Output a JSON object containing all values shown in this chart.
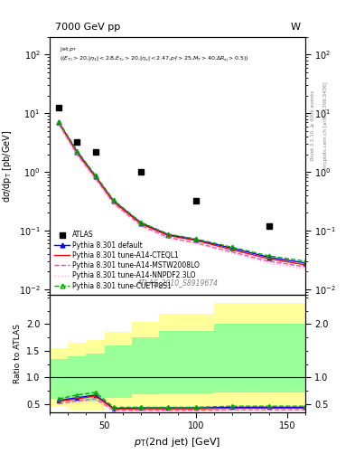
{
  "title_left": "7000 GeV pp",
  "title_right": "W",
  "watermark": "ATLAS_2010_S8919674",
  "xlabel": "p_{T}(2nd jet) [GeV]",
  "ylabel_main": "d#sigma/dp_{T} [pb/GeV]",
  "ylabel_ratio": "Ratio to ATLAS",
  "atlas_x": [
    25,
    35,
    45,
    70,
    100,
    140
  ],
  "atlas_y": [
    12.5,
    3.2,
    2.2,
    1.0,
    0.32,
    0.12
  ],
  "pythia_x": [
    25,
    35,
    45,
    55,
    70,
    85,
    100,
    120,
    140,
    160
  ],
  "pythia_default_y": [
    7.0,
    2.2,
    0.85,
    0.32,
    0.135,
    0.085,
    0.07,
    0.05,
    0.035,
    0.028
  ],
  "pythia_cteql1_y": [
    6.8,
    2.1,
    0.82,
    0.31,
    0.13,
    0.082,
    0.068,
    0.047,
    0.033,
    0.026
  ],
  "pythia_mstw_y": [
    6.5,
    2.0,
    0.78,
    0.29,
    0.122,
    0.076,
    0.062,
    0.043,
    0.03,
    0.024
  ],
  "pythia_nnpdf_y": [
    6.3,
    1.9,
    0.75,
    0.28,
    0.118,
    0.073,
    0.06,
    0.041,
    0.028,
    0.022
  ],
  "pythia_cuetp_y": [
    7.2,
    2.3,
    0.88,
    0.33,
    0.138,
    0.087,
    0.072,
    0.052,
    0.037,
    0.03
  ],
  "ratio_x_edges": [
    20,
    30,
    40,
    50,
    65,
    80,
    110,
    160
  ],
  "ratio_yellow_lo": [
    0.45,
    0.4,
    0.4,
    0.45,
    0.45,
    0.45,
    0.45
  ],
  "ratio_yellow_hi": [
    1.55,
    1.65,
    1.7,
    1.85,
    2.05,
    2.2,
    2.4
  ],
  "ratio_green_lo": [
    0.6,
    0.55,
    0.55,
    0.62,
    0.68,
    0.7,
    0.72
  ],
  "ratio_green_hi": [
    1.35,
    1.4,
    1.45,
    1.6,
    1.75,
    1.88,
    2.0
  ],
  "ratio_x": [
    25,
    35,
    45,
    55,
    70,
    85,
    100,
    120,
    140,
    160
  ],
  "ratio_default_y": [
    0.57,
    0.62,
    0.67,
    0.42,
    0.43,
    0.43,
    0.43,
    0.44,
    0.44,
    0.44
  ],
  "ratio_cteql1_y": [
    0.55,
    0.6,
    0.65,
    0.41,
    0.41,
    0.41,
    0.41,
    0.42,
    0.42,
    0.42
  ],
  "ratio_mstw_y": [
    0.51,
    0.56,
    0.6,
    0.38,
    0.38,
    0.38,
    0.38,
    0.39,
    0.39,
    0.39
  ],
  "ratio_nnpdf_y": [
    0.49,
    0.53,
    0.57,
    0.37,
    0.37,
    0.37,
    0.37,
    0.38,
    0.38,
    0.38
  ],
  "ratio_cuetp_y": [
    0.6,
    0.67,
    0.72,
    0.44,
    0.44,
    0.44,
    0.44,
    0.46,
    0.46,
    0.46
  ],
  "color_default": "#0000ff",
  "color_cteql1": "#ff0000",
  "color_mstw": "#ff44aa",
  "color_nnpdf": "#ffaacc",
  "color_cuetp": "#00aa00",
  "color_atlas": "#000000",
  "color_yellow": "#ffff99",
  "color_green": "#99ff99",
  "ylim_main": [
    0.008,
    200
  ],
  "ylim_ratio": [
    0.35,
    2.55
  ],
  "xlim_main": [
    20,
    160
  ],
  "xlim_ratio": [
    20,
    160
  ]
}
